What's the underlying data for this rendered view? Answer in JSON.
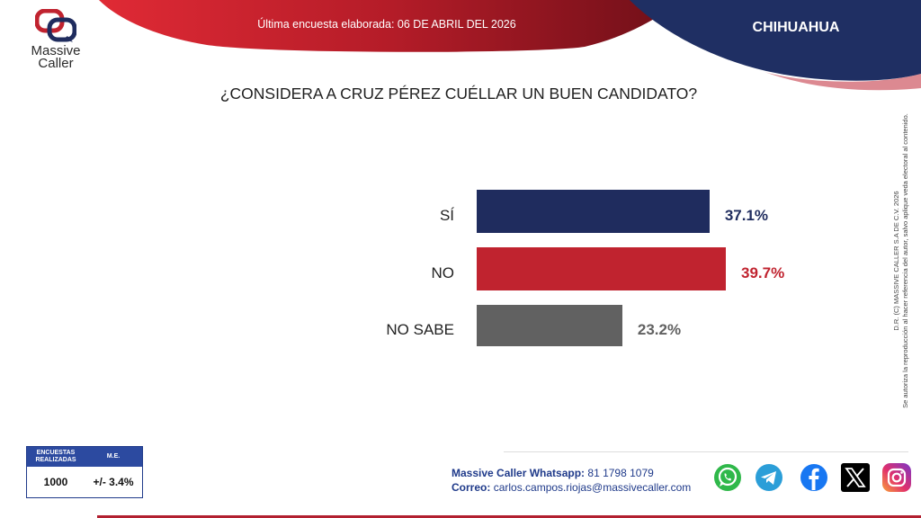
{
  "header": {
    "date_text": "Última encuesta elaborada: 06 DE ABRIL DEL 2026",
    "state": "CHIHUAHUA"
  },
  "logo": {
    "line1": "Massive",
    "line2": "Caller"
  },
  "question": "¿CONSIDERA A CRUZ PÉREZ CUÉLLAR UN BUEN CANDIDATO?",
  "chart_data": {
    "type": "bar",
    "orientation": "horizontal",
    "title": "¿CONSIDERA A CRUZ PÉREZ CUÉLLAR UN BUEN CANDIDATO?",
    "categories": [
      "SÍ",
      "NO",
      "NO SABE"
    ],
    "values": [
      37.1,
      39.7,
      23.2
    ],
    "value_labels": [
      "37.1%",
      "39.7%",
      "23.2%"
    ],
    "colors": [
      "#1f2c5e",
      "#c0232f",
      "#616161"
    ],
    "unit": "%",
    "xlim": [
      0,
      40
    ]
  },
  "copyright": {
    "line1": "D.R. (C) MASSIVE CALLER S.A DE C.V. 2026",
    "line2": "Se autoriza la reproducción al hacer referencia del autor, salvo aplique veda electoral al contenido."
  },
  "sample_box": {
    "header_left": "ENCUESTAS REALIZADAS",
    "header_right": "M.E.",
    "value_left": "1000",
    "value_right": "+/- 3.4%"
  },
  "contact": {
    "whatsapp_label": "Massive Caller Whatsapp:",
    "whatsapp_number": "81 1798 1079",
    "email_label": "Correo:",
    "email": "carlos.campos.riojas@massivecaller.com"
  },
  "social_icons": [
    "whatsapp-icon",
    "telegram-icon",
    "facebook-icon",
    "x-icon",
    "instagram-icon"
  ]
}
